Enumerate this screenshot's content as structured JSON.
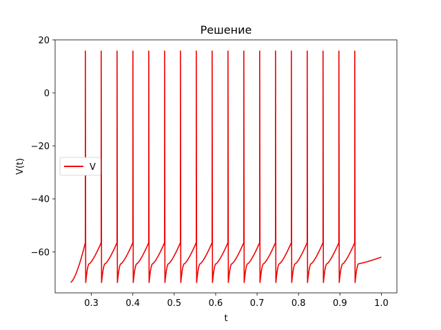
{
  "chart_data": {
    "type": "line",
    "title": "Решение",
    "xlabel": "t",
    "ylabel": "V(t)",
    "xlim": [
      0.2125,
      1.0375
    ],
    "ylim": [
      -75.5,
      20
    ],
    "x_ticks": [
      0.3,
      0.4,
      0.5,
      0.6,
      0.7,
      0.8,
      0.9,
      1.0
    ],
    "x_tick_labels": [
      "0.3",
      "0.4",
      "0.5",
      "0.6",
      "0.7",
      "0.8",
      "0.9",
      "1.0"
    ],
    "y_ticks": [
      20,
      0,
      -20,
      -40,
      -60
    ],
    "y_tick_labels": [
      "20",
      "0",
      "−20",
      "−40",
      "−60"
    ],
    "grid": false,
    "legend_position": "center-left",
    "colors": {
      "series": "#ee0000",
      "frame": "#000000"
    },
    "series": [
      {
        "name": "V",
        "color": "#ee0000",
        "t_start": 0.25,
        "t_end": 1.0,
        "first_spike": 0.2855,
        "spike_period": 0.03825,
        "spike_count": 18,
        "v_start": -71.5,
        "v_end": -62,
        "v_peak": 15.8,
        "v_trough": -71.7,
        "v_prespike": -56.5
      }
    ]
  }
}
